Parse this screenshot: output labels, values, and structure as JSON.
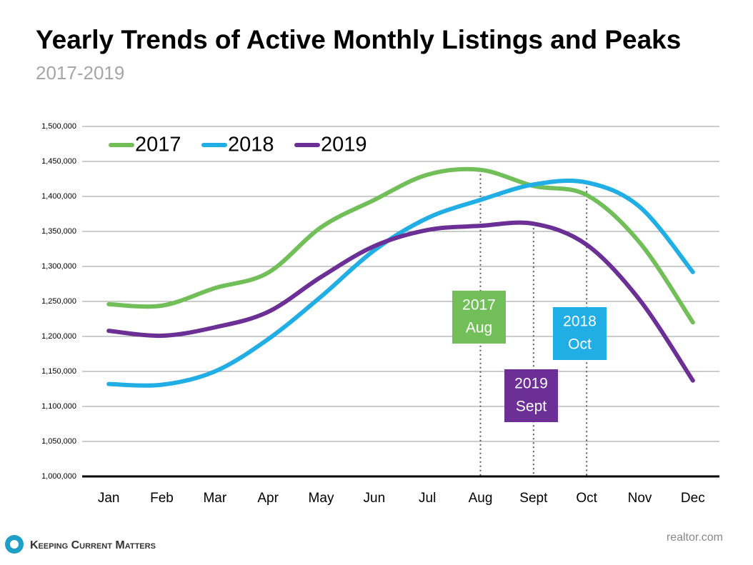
{
  "chart_data": {
    "type": "line",
    "title": "Yearly Trends of Active Monthly Listings and Peaks",
    "subtitle": "2017-2019",
    "categories": [
      "Jan",
      "Feb",
      "Mar",
      "Apr",
      "May",
      "Jun",
      "Jul",
      "Aug",
      "Sept",
      "Oct",
      "Nov",
      "Dec"
    ],
    "series": [
      {
        "name": "2017",
        "color": "#72bf5a",
        "values": [
          1246000,
          1244000,
          1269000,
          1291000,
          1356000,
          1395000,
          1431000,
          1438000,
          1415000,
          1402000,
          1334000,
          1220000
        ]
      },
      {
        "name": "2018",
        "color": "#20aee5",
        "values": [
          1132000,
          1131000,
          1150000,
          1196000,
          1257000,
          1323000,
          1369000,
          1395000,
          1417000,
          1420000,
          1385000,
          1292000
        ]
      },
      {
        "name": "2019",
        "color": "#6b2f95",
        "values": [
          1208000,
          1201000,
          1213000,
          1235000,
          1285000,
          1329000,
          1352000,
          1358000,
          1361000,
          1331000,
          1252000,
          1137000
        ]
      }
    ],
    "ylim": [
      1000000,
      1500000
    ],
    "yticks": [
      {
        "value": 1000000,
        "label": "1,000,000"
      },
      {
        "value": 1050000,
        "label": "1,050,000"
      },
      {
        "value": 1100000,
        "label": "1,100,000"
      },
      {
        "value": 1150000,
        "label": "1,150,000"
      },
      {
        "value": 1200000,
        "label": "1,200,000"
      },
      {
        "value": 1250000,
        "label": "1,250,000"
      },
      {
        "value": 1300000,
        "label": "1,300,000"
      },
      {
        "value": 1350000,
        "label": "1,350,000"
      },
      {
        "value": 1400000,
        "label": "1,400,000"
      },
      {
        "value": 1450000,
        "label": "1,450,000"
      },
      {
        "value": 1500000,
        "label": "1,500,000"
      }
    ],
    "grid": true,
    "legend": "top-left",
    "annotations": [
      {
        "lines": [
          "2017",
          "Aug"
        ],
        "color": "#72bf5a"
      },
      {
        "lines": [
          "2018",
          "Oct"
        ],
        "color": "#20aee5"
      },
      {
        "lines": [
          "2019",
          "Sept"
        ],
        "color": "#6b2f95"
      }
    ]
  },
  "footer": {
    "brand": "Keeping Current Matters",
    "source": "realtor.com"
  }
}
